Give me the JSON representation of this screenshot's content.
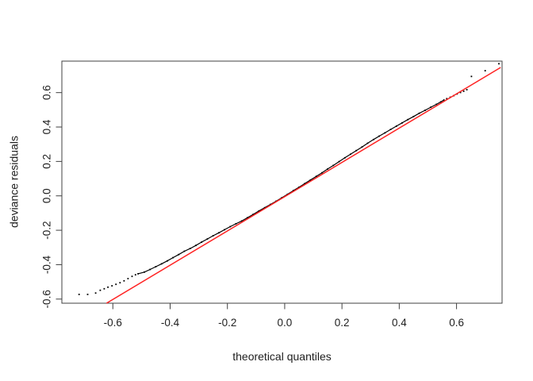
{
  "figure": {
    "background": "#ffffff"
  },
  "colors": {
    "axis": "#404040",
    "text": "#1e1e1e",
    "points": "#000000",
    "reference_line": "#ff2222"
  },
  "chart_data": {
    "type": "scatter",
    "subtype": "qq-plot",
    "title": "",
    "xlabel": "theoretical quantiles",
    "ylabel": "deviance residuals",
    "xlim": [
      -0.778,
      0.759
    ],
    "ylim": [
      -0.624,
      0.783
    ],
    "grid": false,
    "x_ticks": [
      -0.6,
      -0.4,
      -0.2,
      0.0,
      0.2,
      0.4,
      0.6
    ],
    "x_tick_labels": [
      "-0.6",
      "-0.4",
      "-0.2",
      "0.0",
      "0.2",
      "0.4",
      "0.6"
    ],
    "y_ticks": [
      -0.6,
      -0.4,
      -0.2,
      0.0,
      0.2,
      0.4,
      0.6
    ],
    "y_tick_labels": [
      "-0.6",
      "-0.4",
      "-0.2",
      "0.0",
      "0.2",
      "0.4",
      "0.6"
    ],
    "series": [
      {
        "name": "sample-quantiles-curve",
        "render": "dense-points",
        "color": "#000000",
        "points": [
          [
            -0.512,
            -0.453
          ],
          [
            -0.49,
            -0.443
          ],
          [
            -0.47,
            -0.428
          ],
          [
            -0.45,
            -0.412
          ],
          [
            -0.43,
            -0.395
          ],
          [
            -0.41,
            -0.378
          ],
          [
            -0.39,
            -0.359
          ],
          [
            -0.37,
            -0.341
          ],
          [
            -0.35,
            -0.322
          ],
          [
            -0.33,
            -0.306
          ],
          [
            -0.31,
            -0.288
          ],
          [
            -0.29,
            -0.269
          ],
          [
            -0.27,
            -0.251
          ],
          [
            -0.25,
            -0.232
          ],
          [
            -0.23,
            -0.215
          ],
          [
            -0.21,
            -0.197
          ],
          [
            -0.19,
            -0.179
          ],
          [
            -0.17,
            -0.162
          ],
          [
            -0.15,
            -0.146
          ],
          [
            -0.13,
            -0.127
          ],
          [
            -0.11,
            -0.108
          ],
          [
            -0.09,
            -0.088
          ],
          [
            -0.07,
            -0.069
          ],
          [
            -0.05,
            -0.05
          ],
          [
            -0.03,
            -0.031
          ],
          [
            -0.01,
            -0.011
          ],
          [
            0.01,
            0.009
          ],
          [
            0.03,
            0.03
          ],
          [
            0.05,
            0.05
          ],
          [
            0.07,
            0.071
          ],
          [
            0.09,
            0.092
          ],
          [
            0.11,
            0.113
          ],
          [
            0.13,
            0.134
          ],
          [
            0.15,
            0.156
          ],
          [
            0.17,
            0.177
          ],
          [
            0.19,
            0.199
          ],
          [
            0.21,
            0.221
          ],
          [
            0.23,
            0.242
          ],
          [
            0.25,
            0.263
          ],
          [
            0.27,
            0.284
          ],
          [
            0.29,
            0.306
          ],
          [
            0.31,
            0.327
          ],
          [
            0.33,
            0.347
          ],
          [
            0.35,
            0.366
          ],
          [
            0.37,
            0.386
          ],
          [
            0.39,
            0.405
          ],
          [
            0.41,
            0.424
          ],
          [
            0.43,
            0.443
          ],
          [
            0.45,
            0.461
          ],
          [
            0.47,
            0.48
          ],
          [
            0.49,
            0.497
          ],
          [
            0.51,
            0.515
          ],
          [
            0.53,
            0.532
          ],
          [
            0.545,
            0.546
          ],
          [
            0.556,
            0.557
          ]
        ]
      },
      {
        "name": "left-tail-points",
        "render": "points",
        "color": "#000000",
        "points": [
          [
            -0.718,
            -0.573
          ],
          [
            -0.688,
            -0.573
          ],
          [
            -0.66,
            -0.565
          ],
          [
            -0.644,
            -0.549
          ],
          [
            -0.63,
            -0.54
          ],
          [
            -0.617,
            -0.531
          ],
          [
            -0.603,
            -0.523
          ],
          [
            -0.589,
            -0.514
          ],
          [
            -0.575,
            -0.505
          ],
          [
            -0.561,
            -0.494
          ],
          [
            -0.547,
            -0.481
          ],
          [
            -0.533,
            -0.468
          ],
          [
            -0.521,
            -0.459
          ]
        ]
      },
      {
        "name": "right-tail-points",
        "render": "points",
        "color": "#000000",
        "points": [
          [
            0.566,
            0.565
          ],
          [
            0.578,
            0.573
          ],
          [
            0.59,
            0.582
          ],
          [
            0.602,
            0.592
          ],
          [
            0.614,
            0.601
          ],
          [
            0.625,
            0.608
          ],
          [
            0.636,
            0.617
          ],
          [
            0.652,
            0.694
          ],
          [
            0.7,
            0.727
          ],
          [
            0.748,
            0.768
          ]
        ]
      },
      {
        "name": "reference-line",
        "render": "line",
        "color": "#ff2222",
        "points": [
          [
            -0.622,
            -0.624
          ],
          [
            0.754,
            0.746
          ]
        ]
      }
    ]
  }
}
